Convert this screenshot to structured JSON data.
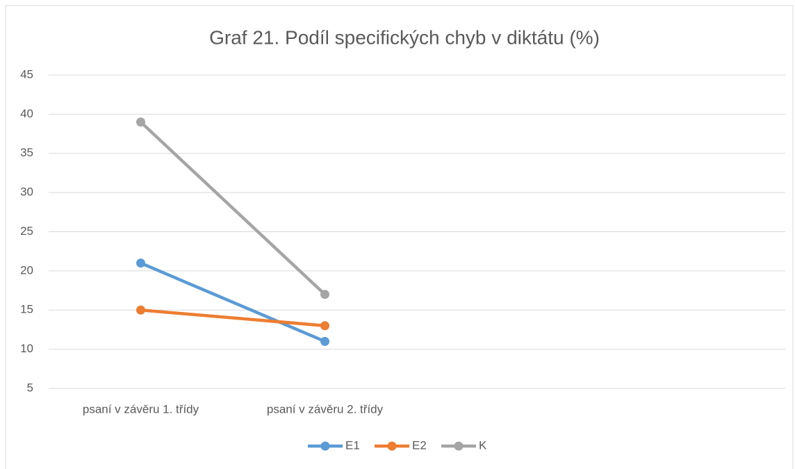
{
  "chart_data": {
    "type": "line",
    "title": "Graf 21. Podíl specifických chyb v diktátu (%)",
    "categories": [
      "psaní v závěru 1. třídy",
      "psaní v závěru 2. třídy",
      null,
      null
    ],
    "series": [
      {
        "name": "E1",
        "color": "#5b9bd5",
        "values": [
          21,
          11,
          null,
          null
        ]
      },
      {
        "name": "E2",
        "color": "#ed7d31",
        "values": [
          15,
          13,
          null,
          null
        ]
      },
      {
        "name": "K",
        "color": "#a5a5a5",
        "values": [
          39,
          17,
          null,
          null
        ]
      }
    ],
    "ylim": [
      5,
      45
    ],
    "yticks": [
      5,
      10,
      15,
      20,
      25,
      30,
      35,
      40,
      45
    ],
    "grid": true,
    "legend": "bottom"
  }
}
